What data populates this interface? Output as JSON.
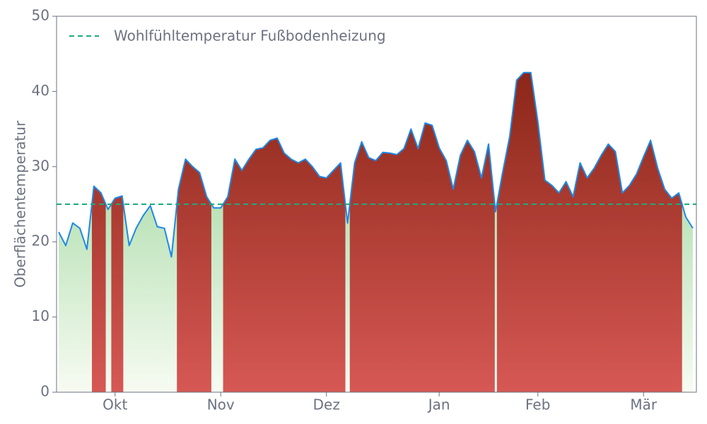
{
  "chart_data": {
    "type": "line",
    "y_label": "Oberflächentemperatur",
    "ylim": [
      0,
      50
    ],
    "yticks": [
      0,
      10,
      20,
      30,
      40,
      50
    ],
    "grid": false,
    "legend": "upper left",
    "categories": [
      null,
      null,
      null,
      null,
      null,
      null,
      null,
      null,
      "Okt",
      null,
      null,
      null,
      null,
      null,
      null,
      null,
      null,
      null,
      null,
      null,
      null,
      null,
      null,
      "Nov",
      null,
      null,
      null,
      null,
      null,
      null,
      null,
      null,
      null,
      null,
      null,
      null,
      null,
      null,
      "Dez",
      null,
      null,
      null,
      null,
      null,
      null,
      null,
      null,
      null,
      null,
      null,
      null,
      null,
      null,
      null,
      "Jan",
      null,
      null,
      null,
      null,
      null,
      null,
      null,
      null,
      null,
      null,
      null,
      null,
      null,
      "Feb",
      null,
      null,
      null,
      null,
      null,
      null,
      null,
      null,
      null,
      null,
      null,
      null,
      null,
      null,
      "Mär",
      null,
      null,
      null,
      null,
      null,
      null,
      null
    ],
    "series": [
      {
        "color": "#1e88e5",
        "above_color": "#b53a2e",
        "below_color": "#8fd18f",
        "values": [
          21.3,
          19.5,
          22.5,
          21.8,
          19,
          27.4,
          26.5,
          24.3,
          25.8,
          26.1,
          19.5,
          21.8,
          23.5,
          24.8,
          22,
          21.8,
          18,
          27,
          31,
          30,
          29.2,
          26,
          24.5,
          24.5,
          26,
          31,
          29.5,
          31,
          32.3,
          32.5,
          33.5,
          33.8,
          31.8,
          31,
          30.5,
          31,
          30,
          28.7,
          28.5,
          29.5,
          30.5,
          22.5,
          30.5,
          33.3,
          31.2,
          30.8,
          31.9,
          31.8,
          31.6,
          32.4,
          35,
          32.4,
          35.8,
          35.5,
          32.5,
          30.8,
          27,
          31.5,
          33.5,
          32,
          28.5,
          33,
          24,
          29.2,
          34,
          41.5,
          42.5,
          42.5,
          36,
          28.2,
          27.5,
          26.5,
          28,
          26,
          30.5,
          28.5,
          29.8,
          31.5,
          33,
          32,
          26.5,
          27.5,
          29,
          31.3,
          33.5,
          29.8,
          27,
          25.8,
          26.5,
          23.3,
          21.8
        ]
      }
    ],
    "threshold": {
      "name": "Wohlfühltemperatur Fußbodenheizung",
      "value": 25,
      "color": "#1aab7e"
    }
  }
}
